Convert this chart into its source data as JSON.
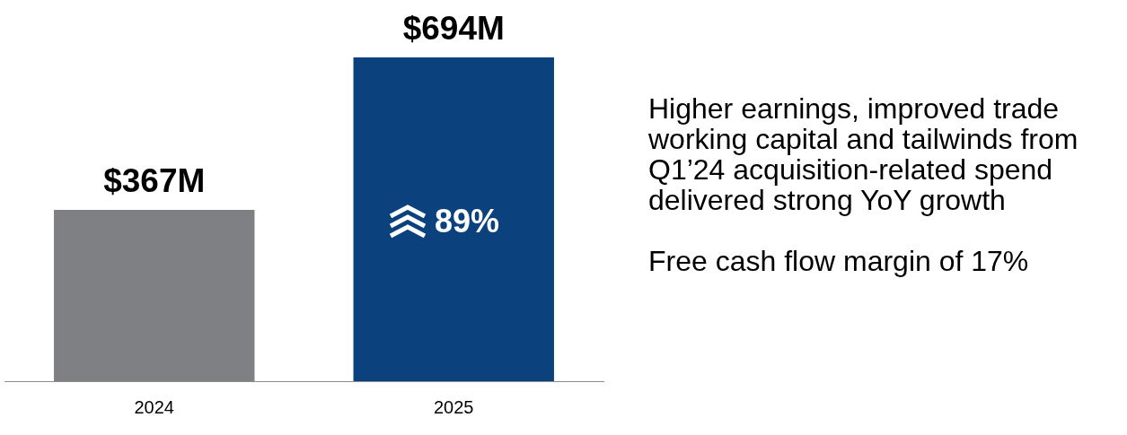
{
  "chart_data": {
    "type": "bar",
    "categories": [
      "2024",
      "2025"
    ],
    "values": [
      367,
      694
    ],
    "colors": [
      "#7f8084",
      "#0b427e"
    ],
    "value_labels": [
      "$367M",
      "$694M"
    ],
    "grid": false,
    "legend": false,
    "annotations": [
      "89%",
      "Higher earnings, improved trade working capital and tailwinds from Q1’24 acquisition-related spend delivered strong YoY growth",
      "Free cash flow margin of 17%"
    ]
  }
}
